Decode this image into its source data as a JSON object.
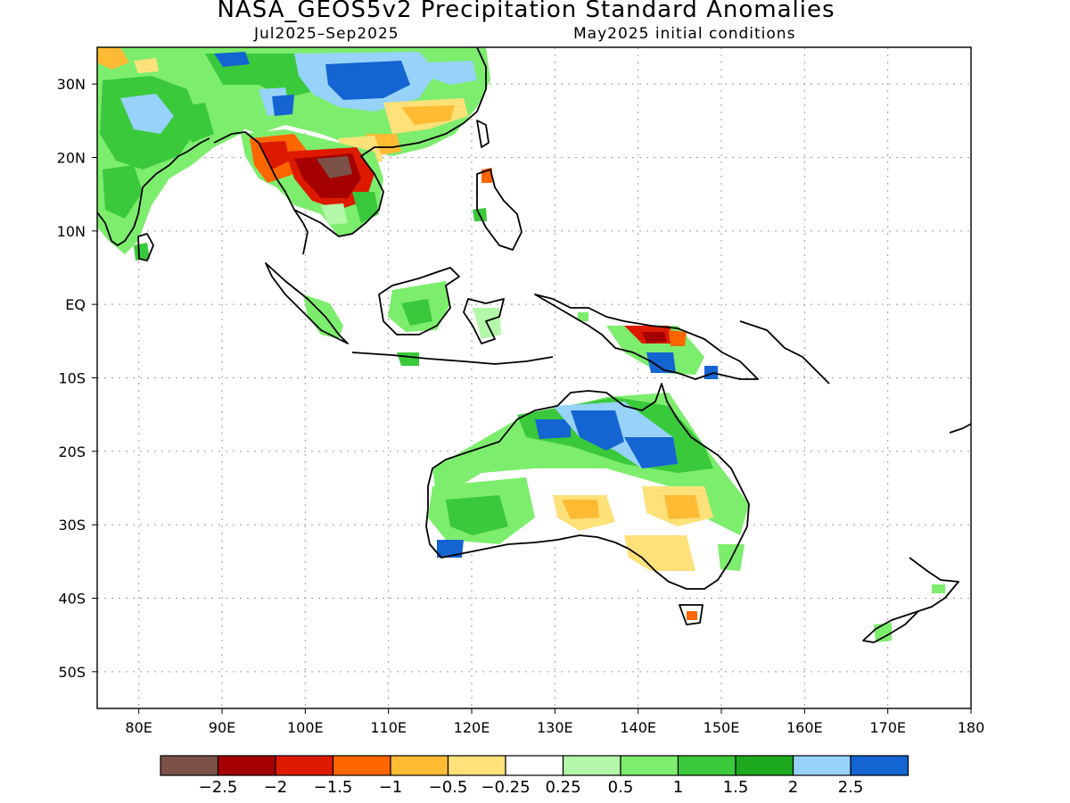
{
  "title": "NASA_GEOS5v2 Precipitation Standard Anomalies",
  "subtitle_left": "Jul2025–Sep2025",
  "subtitle_right": "May2025 initial conditions",
  "map": {
    "lon_range": [
      75,
      180
    ],
    "lat_range": [
      -55,
      35
    ],
    "lat_ticks": [
      {
        "value": 30,
        "label": "30N"
      },
      {
        "value": 20,
        "label": "20N"
      },
      {
        "value": 10,
        "label": "10N"
      },
      {
        "value": 0,
        "label": "EQ"
      },
      {
        "value": -10,
        "label": "10S"
      },
      {
        "value": -20,
        "label": "20S"
      },
      {
        "value": -30,
        "label": "30S"
      },
      {
        "value": -40,
        "label": "40S"
      },
      {
        "value": -50,
        "label": "50S"
      }
    ],
    "lon_ticks": [
      {
        "value": 80,
        "label": "80E"
      },
      {
        "value": 90,
        "label": "90E"
      },
      {
        "value": 100,
        "label": "100E"
      },
      {
        "value": 110,
        "label": "110E"
      },
      {
        "value": 120,
        "label": "120E"
      },
      {
        "value": 130,
        "label": "130E"
      },
      {
        "value": 140,
        "label": "140E"
      },
      {
        "value": 150,
        "label": "150E"
      },
      {
        "value": 160,
        "label": "160E"
      },
      {
        "value": 170,
        "label": "170E"
      },
      {
        "value": 180,
        "label": "180"
      }
    ],
    "grid": "dotted"
  },
  "colorbar": {
    "colors": [
      "#7b5148",
      "#a50000",
      "#dd1a00",
      "#ff6600",
      "#ffbb33",
      "#ffe17a",
      "#ffffff",
      "#b3f7a8",
      "#7ded6d",
      "#3ac93a",
      "#1eaa1e",
      "#96d2fa",
      "#1464d2"
    ],
    "labels": [
      "−2.5",
      "−2",
      "−1.5",
      "−1",
      "−0.5",
      "−0.25",
      "0.25",
      "0.5",
      "1",
      "1.5",
      "2",
      "2.5"
    ]
  }
}
